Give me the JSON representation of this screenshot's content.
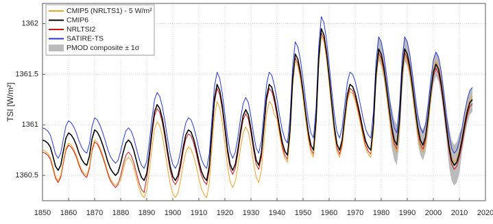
{
  "chart_data": {
    "type": "line",
    "y_label": "TSI [W/m²]",
    "xlim": [
      1850,
      2020
    ],
    "xticks": [
      1850,
      1860,
      1870,
      1880,
      1890,
      1900,
      1910,
      1920,
      1930,
      1940,
      1950,
      1960,
      1970,
      1980,
      1990,
      2000,
      2010,
      2020
    ],
    "ylim": [
      1360.25,
      1362.2
    ],
    "yticks": [
      1360.5,
      1361,
      1361.5,
      1362
    ],
    "grid": true,
    "legend": "top-left",
    "x": [
      1850,
      1851,
      1852,
      1853,
      1854,
      1855,
      1856,
      1857,
      1858,
      1859,
      1860,
      1861,
      1862,
      1863,
      1864,
      1865,
      1866,
      1867,
      1868,
      1869,
      1870,
      1871,
      1872,
      1873,
      1874,
      1875,
      1876,
      1877,
      1878,
      1879,
      1880,
      1881,
      1882,
      1883,
      1884,
      1885,
      1886,
      1887,
      1888,
      1889,
      1890,
      1891,
      1892,
      1893,
      1894,
      1895,
      1896,
      1897,
      1898,
      1899,
      1900,
      1901,
      1902,
      1903,
      1904,
      1905,
      1906,
      1907,
      1908,
      1909,
      1910,
      1911,
      1912,
      1913,
      1914,
      1915,
      1916,
      1917,
      1918,
      1919,
      1920,
      1921,
      1922,
      1923,
      1924,
      1925,
      1926,
      1927,
      1928,
      1929,
      1930,
      1931,
      1932,
      1933,
      1934,
      1935,
      1936,
      1937,
      1938,
      1939,
      1940,
      1941,
      1942,
      1943,
      1944,
      1945,
      1946,
      1947,
      1948,
      1949,
      1950,
      1951,
      1952,
      1953,
      1954,
      1955,
      1956,
      1957,
      1958,
      1959,
      1960,
      1961,
      1962,
      1963,
      1964,
      1965,
      1966,
      1967,
      1968,
      1969,
      1970,
      1971,
      1972,
      1973,
      1974,
      1975,
      1976,
      1977,
      1978,
      1979,
      1980,
      1981,
      1982,
      1983,
      1984,
      1985,
      1986,
      1987,
      1988,
      1989,
      1990,
      1991,
      1992,
      1993,
      1994,
      1995,
      1996,
      1997,
      1998,
      1999,
      2000,
      2001,
      2002,
      2003,
      2004,
      2005,
      2006,
      2007,
      2008,
      2009,
      2010,
      2011,
      2012,
      2013,
      2014,
      2015
    ],
    "series": [
      {
        "name": "CMIP5 (NRLTS1) - 5 W/m²",
        "color": "#f0a020",
        "values": [
          1360.75,
          1360.74,
          1360.72,
          1360.68,
          1360.59,
          1360.49,
          1360.45,
          1360.5,
          1360.64,
          1360.77,
          1360.82,
          1360.8,
          1360.76,
          1360.7,
          1360.62,
          1360.56,
          1360.52,
          1360.5,
          1360.59,
          1360.76,
          1360.85,
          1360.83,
          1360.78,
          1360.71,
          1360.63,
          1360.54,
          1360.47,
          1360.43,
          1360.4,
          1360.43,
          1360.45,
          1360.56,
          1360.65,
          1360.68,
          1360.65,
          1360.58,
          1360.48,
          1360.38,
          1360.31,
          1360.28,
          1360.35,
          1360.54,
          1360.77,
          1360.96,
          1361.03,
          1360.99,
          1360.89,
          1360.74,
          1360.57,
          1360.42,
          1360.32,
          1360.28,
          1360.33,
          1360.45,
          1360.61,
          1360.73,
          1360.78,
          1360.76,
          1360.69,
          1360.59,
          1360.47,
          1360.37,
          1360.31,
          1360.28,
          1360.42,
          1360.76,
          1361.09,
          1361.23,
          1361.17,
          1361.02,
          1360.81,
          1360.59,
          1360.44,
          1360.38,
          1360.44,
          1360.59,
          1360.77,
          1360.92,
          1360.98,
          1360.93,
          1360.79,
          1360.62,
          1360.48,
          1360.43,
          1360.55,
          1360.83,
          1361.11,
          1361.23,
          1361.2,
          1361.1,
          1361.06,
          1360.9,
          1360.76,
          1360.67,
          1360.63,
          1360.88,
          1361.38,
          1361.63,
          1361.58,
          1361.45,
          1361.26,
          1361.05,
          1360.86,
          1360.73,
          1360.68,
          1360.98,
          1361.58,
          1361.88,
          1361.82,
          1361.65,
          1361.41,
          1361.15,
          1360.91,
          1360.74,
          1360.68,
          1360.78,
          1361.01,
          1361.23,
          1361.33,
          1361.31,
          1361.24,
          1361.13,
          1361.01,
          1360.88,
          1360.77,
          1360.71,
          1360.68,
          1360.93,
          1361.43,
          1361.68,
          1361.63,
          1361.5,
          1361.31,
          1361.1,
          1360.91,
          1360.78,
          1360.73,
          1360.97,
          1361.44,
          1361.68,
          1361.63,
          1361.5,
          1361.31,
          1361.1,
          1360.91,
          1360.78,
          1360.73,
          1360.81,
          1361.01,
          1361.25,
          1361.55,
          1361.63,
          1361.58,
          1361.44,
          1361.24,
          1361.02,
          1360.82,
          1360.68,
          1360.63,
          1360.66,
          1360.75,
          1360.88,
          1361.03,
          1361.16,
          1361.25,
          1361.28
        ]
      },
      {
        "name": "CMIP6",
        "color": "#000000",
        "values": [
          1360.85,
          1360.84,
          1360.82,
          1360.78,
          1360.69,
          1360.59,
          1360.55,
          1360.6,
          1360.74,
          1360.87,
          1360.92,
          1360.9,
          1360.86,
          1360.8,
          1360.72,
          1360.66,
          1360.62,
          1360.6,
          1360.69,
          1360.86,
          1360.95,
          1360.93,
          1360.88,
          1360.81,
          1360.73,
          1360.64,
          1360.57,
          1360.53,
          1360.5,
          1360.53,
          1360.62,
          1360.73,
          1360.82,
          1360.85,
          1360.82,
          1360.75,
          1360.65,
          1360.55,
          1360.48,
          1360.45,
          1360.52,
          1360.71,
          1360.94,
          1361.13,
          1361.2,
          1361.16,
          1361.06,
          1360.91,
          1360.74,
          1360.59,
          1360.49,
          1360.45,
          1360.5,
          1360.62,
          1360.78,
          1360.9,
          1360.95,
          1360.93,
          1360.86,
          1360.76,
          1360.64,
          1360.54,
          1360.48,
          1360.45,
          1360.59,
          1360.93,
          1361.26,
          1361.4,
          1361.34,
          1361.19,
          1360.98,
          1360.76,
          1360.61,
          1360.55,
          1360.61,
          1360.76,
          1360.94,
          1361.09,
          1361.15,
          1361.1,
          1360.96,
          1360.79,
          1360.65,
          1360.6,
          1360.72,
          1361.0,
          1361.28,
          1361.4,
          1361.37,
          1361.27,
          1361.13,
          1360.97,
          1360.83,
          1360.74,
          1360.7,
          1360.95,
          1361.45,
          1361.7,
          1361.65,
          1361.52,
          1361.33,
          1361.12,
          1360.93,
          1360.8,
          1360.75,
          1361.05,
          1361.65,
          1361.95,
          1361.89,
          1361.72,
          1361.48,
          1361.22,
          1360.98,
          1360.81,
          1360.75,
          1360.85,
          1361.08,
          1361.3,
          1361.4,
          1361.38,
          1361.31,
          1361.2,
          1361.08,
          1360.95,
          1360.84,
          1360.78,
          1360.75,
          1361.0,
          1361.5,
          1361.75,
          1361.7,
          1361.57,
          1361.38,
          1361.17,
          1360.98,
          1360.85,
          1360.8,
          1361.04,
          1361.51,
          1361.75,
          1361.7,
          1361.57,
          1361.38,
          1361.17,
          1360.98,
          1360.85,
          1360.8,
          1360.88,
          1361.08,
          1361.32,
          1361.52,
          1361.6,
          1361.55,
          1361.41,
          1361.21,
          1360.99,
          1360.79,
          1360.65,
          1360.6,
          1360.63,
          1360.72,
          1360.85,
          1361.0,
          1361.13,
          1361.22,
          1361.25
        ]
      },
      {
        "name": "NRLTSI2",
        "color": "#cc1111",
        "values": [
          1360.73,
          1360.72,
          1360.7,
          1360.66,
          1360.57,
          1360.47,
          1360.43,
          1360.48,
          1360.62,
          1360.75,
          1360.8,
          1360.78,
          1360.74,
          1360.68,
          1360.6,
          1360.54,
          1360.5,
          1360.48,
          1360.57,
          1360.74,
          1360.83,
          1360.81,
          1360.76,
          1360.69,
          1360.61,
          1360.52,
          1360.45,
          1360.41,
          1360.38,
          1360.41,
          1360.5,
          1360.61,
          1360.7,
          1360.73,
          1360.7,
          1360.63,
          1360.53,
          1360.43,
          1360.36,
          1360.33,
          1360.48,
          1360.67,
          1360.9,
          1361.09,
          1361.16,
          1361.12,
          1361.02,
          1360.87,
          1360.7,
          1360.55,
          1360.45,
          1360.41,
          1360.46,
          1360.58,
          1360.74,
          1360.86,
          1360.91,
          1360.89,
          1360.82,
          1360.72,
          1360.6,
          1360.5,
          1360.44,
          1360.41,
          1360.55,
          1360.89,
          1361.22,
          1361.36,
          1361.3,
          1361.15,
          1360.94,
          1360.72,
          1360.57,
          1360.51,
          1360.57,
          1360.72,
          1360.9,
          1361.05,
          1361.11,
          1361.06,
          1360.92,
          1360.75,
          1360.61,
          1360.56,
          1360.68,
          1360.96,
          1361.24,
          1361.36,
          1361.33,
          1361.23,
          1361.09,
          1360.93,
          1360.79,
          1360.7,
          1360.66,
          1360.91,
          1361.41,
          1361.66,
          1361.61,
          1361.48,
          1361.29,
          1361.08,
          1360.89,
          1360.76,
          1360.71,
          1361.01,
          1361.61,
          1361.91,
          1361.85,
          1361.68,
          1361.44,
          1361.18,
          1360.94,
          1360.77,
          1360.71,
          1360.81,
          1361.04,
          1361.26,
          1361.36,
          1361.34,
          1361.27,
          1361.16,
          1361.04,
          1360.91,
          1360.8,
          1360.74,
          1360.71,
          1360.96,
          1361.46,
          1361.71,
          1361.66,
          1361.53,
          1361.34,
          1361.13,
          1360.94,
          1360.81,
          1360.76,
          1361.0,
          1361.47,
          1361.71,
          1361.66,
          1361.53,
          1361.34,
          1361.13,
          1360.94,
          1360.81,
          1360.76,
          1360.84,
          1361.04,
          1361.28,
          1361.48,
          1361.56,
          1361.51,
          1361.37,
          1361.17,
          1360.95,
          1360.75,
          1360.61,
          1360.56,
          1360.59,
          1360.68,
          1360.81,
          1360.96,
          1361.09,
          1361.18,
          1361.21
        ]
      },
      {
        "name": "SATIRE-TS",
        "color": "#2233dd",
        "values": [
          1360.97,
          1360.96,
          1360.94,
          1360.9,
          1360.81,
          1360.71,
          1360.67,
          1360.72,
          1360.86,
          1360.99,
          1361.04,
          1361.02,
          1360.98,
          1360.92,
          1360.84,
          1360.78,
          1360.74,
          1360.72,
          1360.81,
          1360.98,
          1361.07,
          1361.05,
          1361.0,
          1360.93,
          1360.85,
          1360.76,
          1360.69,
          1360.65,
          1360.62,
          1360.65,
          1360.74,
          1360.85,
          1360.94,
          1360.97,
          1360.94,
          1360.87,
          1360.77,
          1360.67,
          1360.6,
          1360.57,
          1360.64,
          1360.83,
          1361.06,
          1361.25,
          1361.32,
          1361.28,
          1361.18,
          1361.03,
          1360.86,
          1360.71,
          1360.61,
          1360.57,
          1360.62,
          1360.74,
          1360.9,
          1361.02,
          1361.07,
          1361.05,
          1360.98,
          1360.88,
          1360.76,
          1360.66,
          1360.6,
          1360.57,
          1360.71,
          1361.05,
          1361.38,
          1361.52,
          1361.46,
          1361.31,
          1361.1,
          1360.88,
          1360.73,
          1360.67,
          1360.73,
          1360.88,
          1361.06,
          1361.21,
          1361.27,
          1361.22,
          1361.08,
          1360.91,
          1360.77,
          1360.72,
          1360.84,
          1361.12,
          1361.4,
          1361.52,
          1361.49,
          1361.39,
          1361.25,
          1361.09,
          1360.95,
          1360.86,
          1360.82,
          1361.07,
          1361.57,
          1361.82,
          1361.77,
          1361.64,
          1361.45,
          1361.24,
          1361.05,
          1360.92,
          1360.87,
          1361.17,
          1361.77,
          1362.07,
          1362.01,
          1361.84,
          1361.6,
          1361.34,
          1361.1,
          1360.93,
          1360.87,
          1360.97,
          1361.2,
          1361.42,
          1361.52,
          1361.5,
          1361.43,
          1361.32,
          1361.2,
          1361.07,
          1360.96,
          1360.9,
          1360.87,
          1361.12,
          1361.62,
          1361.87,
          1361.82,
          1361.69,
          1361.5,
          1361.29,
          1361.1,
          1360.97,
          1360.92,
          1361.16,
          1361.63,
          1361.87,
          1361.82,
          1361.69,
          1361.5,
          1361.29,
          1361.1,
          1360.97,
          1360.92,
          1361.0,
          1361.2,
          1361.44,
          1361.64,
          1361.72,
          1361.67,
          1361.53,
          1361.33,
          1361.11,
          1360.91,
          1360.77,
          1360.72,
          1360.75,
          1360.84,
          1360.97,
          1361.12,
          1361.25,
          1361.34,
          1361.37
        ]
      }
    ],
    "band": {
      "name": "PMOD composite ± 1σ",
      "color": "#bbbbbb",
      "x": [
        1978,
        1979,
        1980,
        1981,
        1982,
        1983,
        1984,
        1985,
        1986,
        1987,
        1988,
        1989,
        1990,
        1991,
        1992,
        1993,
        1994,
        1995,
        1996,
        1997,
        1998,
        1999,
        2000,
        2001,
        2002,
        2003,
        2004,
        2005,
        2006,
        2007,
        2008,
        2009,
        2010,
        2011,
        2012,
        2013,
        2014,
        2015
      ],
      "low": [
        1361.38,
        1361.63,
        1361.58,
        1361.45,
        1361.26,
        1361.05,
        1360.78,
        1360.65,
        1360.6,
        1360.84,
        1361.31,
        1361.63,
        1361.58,
        1361.45,
        1361.26,
        1361.05,
        1360.83,
        1360.7,
        1360.65,
        1360.73,
        1360.93,
        1361.2,
        1361.4,
        1361.48,
        1361.43,
        1361.29,
        1361.09,
        1360.87,
        1360.59,
        1360.45,
        1360.4,
        1360.43,
        1360.52,
        1360.73,
        1360.88,
        1361.01,
        1361.1,
        1361.13
      ],
      "high": [
        1361.62,
        1361.87,
        1361.82,
        1361.69,
        1361.5,
        1361.29,
        1361.18,
        1361.05,
        1361.0,
        1361.24,
        1361.71,
        1361.87,
        1361.82,
        1361.69,
        1361.5,
        1361.29,
        1361.13,
        1361.0,
        1360.95,
        1361.03,
        1361.23,
        1361.44,
        1361.64,
        1361.72,
        1361.67,
        1361.53,
        1361.33,
        1361.11,
        1360.99,
        1360.85,
        1360.8,
        1360.83,
        1360.92,
        1360.97,
        1361.12,
        1361.25,
        1361.34,
        1361.37
      ]
    }
  }
}
